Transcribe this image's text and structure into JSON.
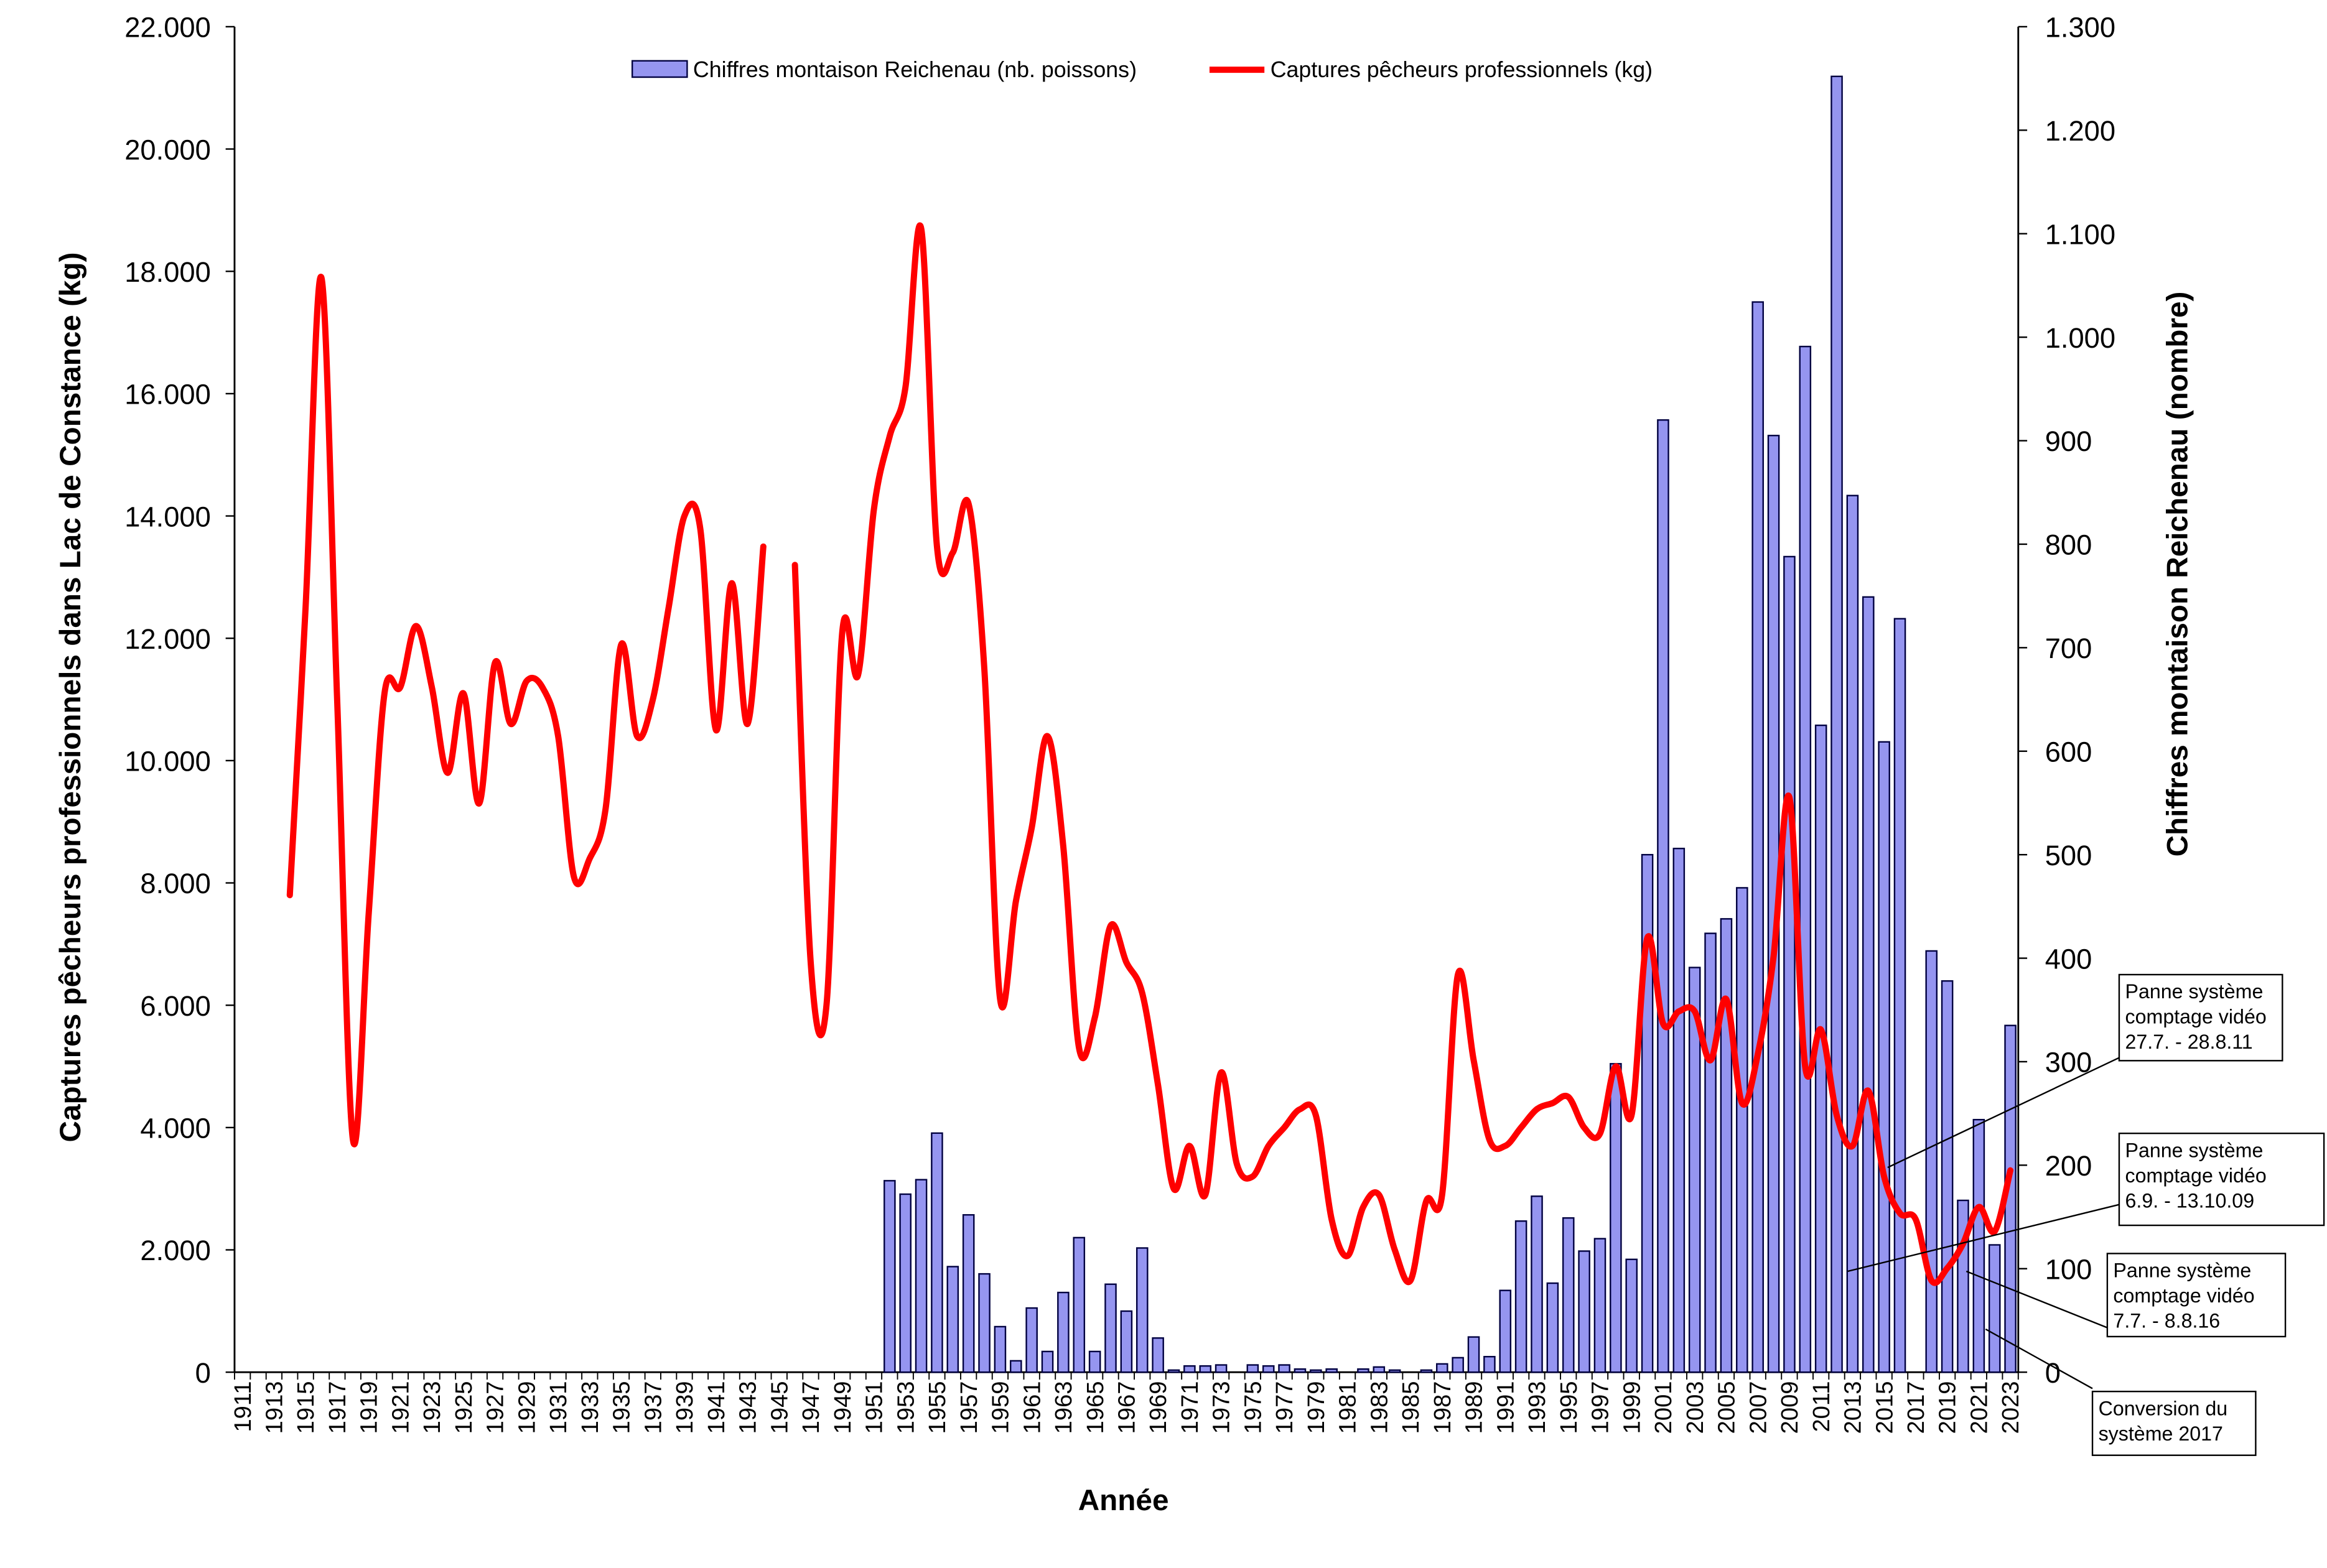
{
  "chart_data": {
    "type": "combo",
    "x_label": "Année",
    "y_label": "Captures pêcheurs professionnels dans Lac de Constance (kg)",
    "y2_label": "Chiffres montaison Reichenau (nombre)",
    "categories": [
      "1911",
      null,
      "1913",
      null,
      "1915",
      null,
      "1917",
      null,
      "1919",
      null,
      "1921",
      null,
      "1923",
      null,
      "1925",
      null,
      "1927",
      null,
      "1929",
      null,
      "1931",
      null,
      "1933",
      null,
      "1935",
      null,
      "1937",
      null,
      "1939",
      null,
      "1941",
      null,
      "1943",
      null,
      "1945",
      null,
      "1947",
      null,
      "1949",
      null,
      "1951",
      null,
      "1953",
      null,
      "1955",
      null,
      "1957",
      null,
      "1959",
      null,
      "1961",
      null,
      "1963",
      null,
      "1965",
      null,
      "1967",
      null,
      "1969",
      null,
      "1971",
      null,
      "1973",
      null,
      "1975",
      null,
      "1977",
      null,
      "1979",
      null,
      "1981",
      null,
      "1983",
      null,
      "1985",
      null,
      "1987",
      null,
      "1989",
      null,
      "1991",
      null,
      "1993",
      null,
      "1995",
      null,
      "1997",
      null,
      "1999",
      null,
      "2001",
      null,
      "2003",
      null,
      "2005",
      null,
      "2007",
      null,
      "2009",
      null,
      "2011",
      null,
      "2013",
      null,
      "2015",
      null,
      "2017",
      null,
      "2019",
      null,
      "2021",
      null,
      "2023"
    ],
    "series": [
      {
        "name": "Chiffres montaison Reichenau (nb. poissons)",
        "type": "bar",
        "axis": "y2",
        "color": "#9595f0",
        "values": [
          null,
          null,
          null,
          null,
          null,
          null,
          null,
          null,
          null,
          null,
          null,
          null,
          null,
          null,
          null,
          null,
          null,
          null,
          null,
          null,
          null,
          null,
          null,
          null,
          null,
          null,
          null,
          null,
          null,
          null,
          null,
          null,
          null,
          null,
          null,
          null,
          null,
          null,
          null,
          null,
          null,
          185,
          172,
          186,
          231,
          102,
          152,
          95,
          44,
          11,
          62,
          20,
          77,
          130,
          20,
          85,
          59,
          120,
          33,
          2,
          6,
          6,
          7,
          0,
          7,
          6,
          7,
          3,
          2,
          3,
          0,
          3,
          5,
          2,
          0,
          2,
          8,
          14,
          34,
          15,
          79,
          146,
          170,
          86,
          149,
          117,
          129,
          298,
          109,
          500,
          920,
          506,
          391,
          424,
          438,
          468,
          1034,
          905,
          788,
          991,
          625,
          1252,
          847,
          749,
          609,
          728,
          null,
          407,
          378,
          166,
          244,
          123,
          335
        ]
      },
      {
        "name": "Captures pêcheurs professionnels  (kg)",
        "type": "line",
        "color": "#ff0000",
        "values": [
          null,
          null,
          null,
          7800,
          12500,
          17900,
          11000,
          3800,
          7500,
          11100,
          11200,
          12200,
          11200,
          9800,
          11100,
          9300,
          11600,
          10600,
          11300,
          11200,
          10400,
          8100,
          8400,
          9200,
          11900,
          10400,
          11000,
          12500,
          14000,
          13800,
          10500,
          12900,
          10600,
          13500,
          null,
          13200,
          6700,
          6000,
          12100,
          11400,
          14100,
          15300,
          16100,
          18700,
          13500,
          13400,
          14200,
          11500,
          6100,
          7700,
          8900,
          10400,
          8600,
          5300,
          5800,
          7300,
          6700,
          6200,
          4700,
          3000,
          3700,
          2900,
          4900,
          3400,
          3200,
          3700,
          4000,
          4300,
          4200,
          2500,
          1900,
          2700,
          2900,
          2000,
          1500,
          2800,
          2900,
          6500,
          5100,
          3800,
          3700,
          4000,
          4300,
          4400,
          4500,
          4000,
          3900,
          5000,
          4200,
          7100,
          5700,
          5900,
          5900,
          5100,
          6100,
          4400,
          5200,
          6800,
          9400,
          5000,
          5600,
          4200,
          3700,
          4600,
          3200,
          2600,
          2500,
          1500,
          1700,
          2100,
          2700,
          2300,
          3300
        ]
      }
    ],
    "ylim": [
      0,
      22000
    ],
    "yticks": [
      0,
      {
        "value": 2000,
        "label": "2.000"
      },
      {
        "value": 4000,
        "label": "4.000"
      },
      {
        "value": 6000,
        "label": "6.000"
      },
      {
        "value": 8000,
        "label": "8.000"
      },
      {
        "value": 10000,
        "label": "10.000"
      },
      {
        "value": 12000,
        "label": "12.000"
      },
      {
        "value": 14000,
        "label": "14.000"
      },
      {
        "value": 16000,
        "label": "16.000"
      },
      {
        "value": 18000,
        "label": "18.000"
      },
      {
        "value": 20000,
        "label": "20.000"
      },
      {
        "value": 22000,
        "label": "22.000"
      }
    ],
    "y2lim": [
      0,
      1300
    ],
    "y2ticks": [
      0,
      100,
      200,
      300,
      400,
      500,
      600,
      700,
      800,
      900,
      {
        "value": 1000,
        "label": "1.000"
      },
      {
        "value": 1100,
        "label": "1.100"
      },
      {
        "value": 1200,
        "label": "1.200"
      },
      {
        "value": 1300,
        "label": "1.300"
      }
    ],
    "grid": false,
    "legend": "top",
    "annotations": [
      {
        "lines": [
          "Panne système",
          "comptage vidéo",
          "27.7. - 28.8.11"
        ]
      },
      {
        "lines": [
          "Panne système",
          "comptage vidéo",
          "6.9. - 13.10.09"
        ]
      },
      {
        "lines": [
          "Panne système",
          "comptage vidéo",
          "7.7. - 8.8.16"
        ]
      },
      {
        "lines": [
          "Conversion du",
          "système 2017"
        ]
      }
    ]
  }
}
